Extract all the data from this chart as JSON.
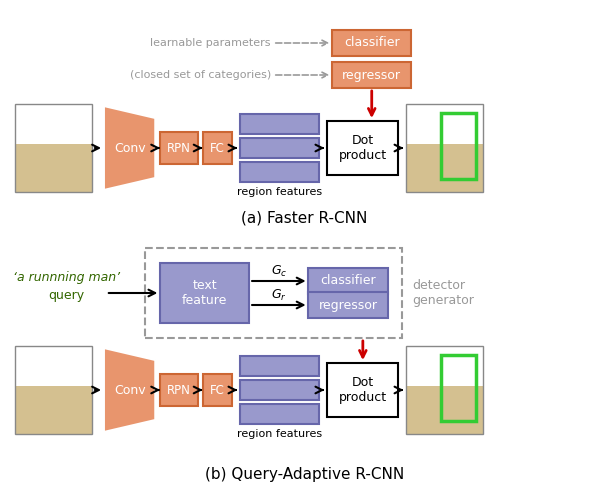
{
  "fig_width": 6.02,
  "fig_height": 4.92,
  "dpi": 100,
  "bg_color": "#ffffff",
  "orange_fill": "#E8956D",
  "orange_edge": "#CC6633",
  "blue_fill": "#9999CC",
  "blue_edge": "#6666AA",
  "dot_fill": "#ffffff",
  "green_border": "#33CC33",
  "red_arrow": "#CC0000",
  "gray_text": "#999999",
  "green_text": "#336600",
  "caption_a": "(a) Faster R-CNN",
  "caption_b": "(b) Query-Adaptive R-CNN",
  "label_conv": "Conv",
  "label_rpn": "RPN",
  "label_fc": "FC",
  "label_dot": "Dot\nproduct",
  "label_classifier": "classifier",
  "label_regressor": "regressor",
  "label_region": "region features",
  "label_learnable": "learnable parameters",
  "label_closed": "(closed set of categories)",
  "label_text_feature": "text\nfeature",
  "label_gc": "$G_c$",
  "label_gr": "$G_r$",
  "label_query_line1": "‘a runnning man’",
  "label_query_line2": "query",
  "label_detector": "detector\ngenerator"
}
